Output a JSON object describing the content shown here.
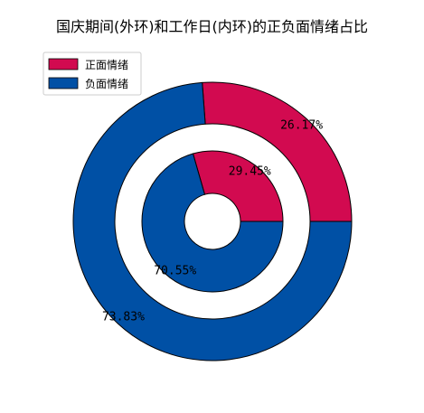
{
  "chart_data": {
    "type": "pie",
    "title": "国庆期间(外环)和工作日(内环)的正负面情绪占比",
    "categories": [
      "正面情绪",
      "负面情绪"
    ],
    "colors": {
      "positive": "#d20a50",
      "negative": "#0050a5",
      "edge": "#000000"
    },
    "series": [
      {
        "ring": "outer",
        "values": [
          26.17,
          73.83
        ],
        "labels": [
          "26.17%",
          "73.83%"
        ]
      },
      {
        "ring": "inner",
        "values": [
          29.45,
          70.55
        ],
        "labels": [
          "29.45%",
          "70.55%"
        ]
      }
    ],
    "start_angle_deg": 0,
    "direction": "counterclockwise",
    "legend": {
      "position": "top-left",
      "entries": [
        "正面情绪",
        "负面情绪"
      ]
    }
  }
}
